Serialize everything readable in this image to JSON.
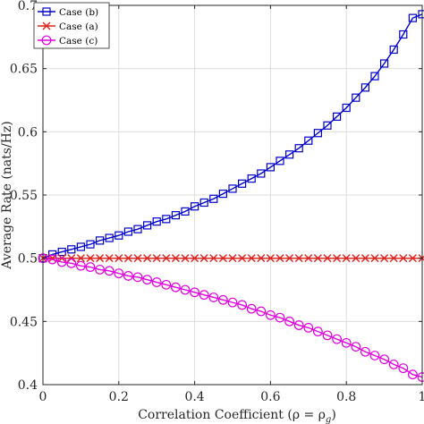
{
  "chart_data": {
    "type": "line",
    "title": "",
    "xlabel": "Correlation Coefficient (ρ = ρ",
    "xlabel_sub": "g",
    "xlabel_close": ")",
    "ylabel": "Average Rate (nats/Hz)",
    "xlim": [
      0,
      1
    ],
    "ylim": [
      0.4,
      0.7
    ],
    "x_ticks": [
      0,
      0.2,
      0.4,
      0.6,
      0.8,
      1
    ],
    "x_tick_labels": [
      "0",
      "0.2",
      "0.4",
      "0.6",
      "0.8",
      "1"
    ],
    "y_ticks": [
      0.4,
      0.45,
      0.5,
      0.55,
      0.6,
      0.65,
      0.7
    ],
    "y_tick_labels": [
      "0.4",
      "0.45",
      "0.5",
      "0.55",
      "0.6",
      "0.65",
      "0.7"
    ],
    "grid": true,
    "legend_position": "top-left",
    "series": [
      {
        "name": "Case (b)",
        "color": "#0000cc",
        "marker": "square",
        "x": [
          0,
          0.025,
          0.05,
          0.075,
          0.1,
          0.125,
          0.15,
          0.175,
          0.2,
          0.225,
          0.25,
          0.275,
          0.3,
          0.325,
          0.35,
          0.375,
          0.4,
          0.425,
          0.45,
          0.475,
          0.5,
          0.525,
          0.55,
          0.575,
          0.6,
          0.625,
          0.65,
          0.675,
          0.7,
          0.725,
          0.75,
          0.775,
          0.8,
          0.825,
          0.85,
          0.875,
          0.9,
          0.925,
          0.95,
          0.975,
          1
        ],
        "y": [
          0.5,
          0.503,
          0.505,
          0.507,
          0.509,
          0.511,
          0.514,
          0.516,
          0.518,
          0.521,
          0.523,
          0.526,
          0.529,
          0.531,
          0.534,
          0.537,
          0.541,
          0.544,
          0.547,
          0.551,
          0.555,
          0.559,
          0.563,
          0.567,
          0.572,
          0.577,
          0.582,
          0.587,
          0.593,
          0.599,
          0.605,
          0.612,
          0.619,
          0.627,
          0.635,
          0.644,
          0.654,
          0.665,
          0.677,
          0.69,
          0.693
        ]
      },
      {
        "name": "Case (a)",
        "color": "#e0201a",
        "marker": "x",
        "x": [
          0,
          0.025,
          0.05,
          0.075,
          0.1,
          0.125,
          0.15,
          0.175,
          0.2,
          0.225,
          0.25,
          0.275,
          0.3,
          0.325,
          0.35,
          0.375,
          0.4,
          0.425,
          0.45,
          0.475,
          0.5,
          0.525,
          0.55,
          0.575,
          0.6,
          0.625,
          0.65,
          0.675,
          0.7,
          0.725,
          0.75,
          0.775,
          0.8,
          0.825,
          0.85,
          0.875,
          0.9,
          0.925,
          0.95,
          0.975,
          1
        ],
        "y": [
          0.5,
          0.5,
          0.5,
          0.5,
          0.5,
          0.5,
          0.5,
          0.5,
          0.5,
          0.5,
          0.5,
          0.5,
          0.5,
          0.5,
          0.5,
          0.5,
          0.5,
          0.5,
          0.5,
          0.5,
          0.5,
          0.5,
          0.5,
          0.5,
          0.5,
          0.5,
          0.5,
          0.5,
          0.5,
          0.5,
          0.5,
          0.5,
          0.5,
          0.5,
          0.5,
          0.5,
          0.5,
          0.5,
          0.5,
          0.5,
          0.5
        ]
      },
      {
        "name": "Case (c)",
        "color": "#e000e0",
        "marker": "circle",
        "x": [
          0,
          0.025,
          0.05,
          0.075,
          0.1,
          0.125,
          0.15,
          0.175,
          0.2,
          0.225,
          0.25,
          0.275,
          0.3,
          0.325,
          0.35,
          0.375,
          0.4,
          0.425,
          0.45,
          0.475,
          0.5,
          0.525,
          0.55,
          0.575,
          0.6,
          0.625,
          0.65,
          0.675,
          0.7,
          0.725,
          0.75,
          0.775,
          0.8,
          0.825,
          0.85,
          0.875,
          0.9,
          0.925,
          0.95,
          0.975,
          1
        ],
        "y": [
          0.5,
          0.499,
          0.497,
          0.496,
          0.494,
          0.493,
          0.491,
          0.49,
          0.488,
          0.486,
          0.485,
          0.483,
          0.481,
          0.479,
          0.477,
          0.475,
          0.473,
          0.471,
          0.469,
          0.467,
          0.465,
          0.463,
          0.46,
          0.458,
          0.455,
          0.453,
          0.45,
          0.447,
          0.445,
          0.442,
          0.439,
          0.436,
          0.433,
          0.43,
          0.426,
          0.423,
          0.42,
          0.416,
          0.413,
          0.408,
          0.406
        ]
      }
    ]
  }
}
